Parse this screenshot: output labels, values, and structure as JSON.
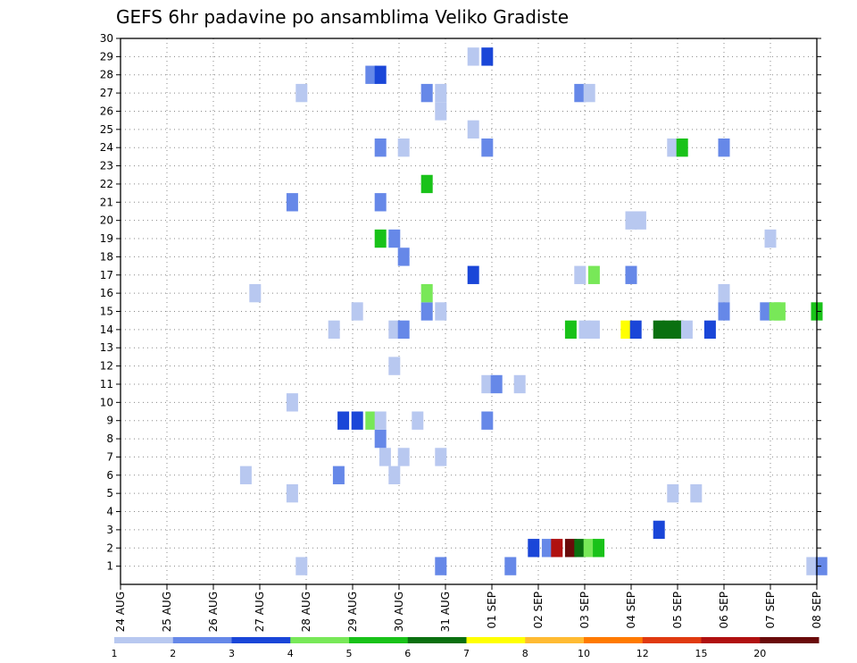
{
  "chart_data": {
    "type": "heatmap",
    "title": "GEFS 6hr padavine po ansamblima Veliko Gradiste",
    "xlabel": "",
    "ylabel": "",
    "x_ticks": [
      "24 AUG",
      "25 AUG",
      "26 AUG",
      "27 AUG",
      "28 AUG",
      "29 AUG",
      "30 AUG",
      "31 AUG",
      "01 SEP",
      "02 SEP",
      "03 SEP",
      "04 SEP",
      "05 SEP",
      "06 SEP",
      "07 SEP",
      "08 SEP"
    ],
    "x_range_days": [
      0,
      15
    ],
    "x_step": 0.25,
    "y_ticks": [
      1,
      2,
      3,
      4,
      5,
      6,
      7,
      8,
      9,
      10,
      11,
      12,
      13,
      14,
      15,
      16,
      17,
      18,
      19,
      20,
      21,
      22,
      23,
      24,
      25,
      26,
      27,
      28,
      29,
      30
    ],
    "y_range": [
      0,
      30
    ],
    "grid": true,
    "colorbar": {
      "labels": [
        "1",
        "2",
        "3",
        "4",
        "5",
        "6",
        "7",
        "8",
        "10",
        "12",
        "15",
        "20"
      ],
      "colors": [
        "#b8c8f0",
        "#6688e8",
        "#1a46d8",
        "#78e858",
        "#19c219",
        "#0a7010",
        "#ffff00",
        "#ffbb33",
        "#ff7a00",
        "#e03a10",
        "#b01010",
        "#6a0a0a"
      ]
    },
    "cells": [
      [
        3.9,
        1,
        0
      ],
      [
        6.9,
        1,
        1
      ],
      [
        8.4,
        1,
        1
      ],
      [
        14.9,
        1,
        0
      ],
      [
        15.1,
        1,
        1
      ],
      [
        8.9,
        2,
        2
      ],
      [
        9.2,
        2,
        1
      ],
      [
        9.4,
        2,
        10
      ],
      [
        9.7,
        2,
        11
      ],
      [
        9.9,
        2,
        5
      ],
      [
        10.1,
        2,
        3
      ],
      [
        10.3,
        2,
        4
      ],
      [
        11.6,
        3,
        2
      ],
      [
        3.7,
        5,
        0
      ],
      [
        11.9,
        5,
        0
      ],
      [
        12.4,
        5,
        0
      ],
      [
        2.7,
        6,
        0
      ],
      [
        4.7,
        6,
        1
      ],
      [
        5.9,
        6,
        0
      ],
      [
        5.7,
        7,
        0
      ],
      [
        6.1,
        7,
        0
      ],
      [
        6.9,
        7,
        0
      ],
      [
        5.6,
        8,
        1
      ],
      [
        4.8,
        9,
        2
      ],
      [
        5.1,
        9,
        2
      ],
      [
        5.4,
        9,
        3
      ],
      [
        5.6,
        9,
        0
      ],
      [
        6.4,
        9,
        0
      ],
      [
        7.9,
        9,
        1
      ],
      [
        3.7,
        10,
        0
      ],
      [
        7.9,
        11,
        0
      ],
      [
        8.1,
        11,
        1
      ],
      [
        8.6,
        11,
        0
      ],
      [
        5.9,
        12,
        0
      ],
      [
        4.6,
        14,
        0
      ],
      [
        5.9,
        14,
        0
      ],
      [
        6.1,
        14,
        1
      ],
      [
        9.7,
        14,
        4
      ],
      [
        10.0,
        14,
        0
      ],
      [
        10.2,
        14,
        0
      ],
      [
        10.9,
        14,
        6
      ],
      [
        11.1,
        14,
        2
      ],
      [
        11.6,
        14,
        5
      ],
      [
        11.8,
        14,
        5
      ],
      [
        12.0,
        14,
        5
      ],
      [
        12.2,
        14,
        0
      ],
      [
        12.7,
        14,
        2
      ],
      [
        5.1,
        15,
        0
      ],
      [
        6.6,
        15,
        1
      ],
      [
        6.9,
        15,
        0
      ],
      [
        13.9,
        15,
        1
      ],
      [
        14.1,
        15,
        3
      ],
      [
        14.2,
        15,
        3
      ],
      [
        15.0,
        15,
        4
      ],
      [
        2.9,
        16,
        0
      ],
      [
        6.6,
        16,
        3
      ],
      [
        13.0,
        16,
        0
      ],
      [
        13.0,
        15,
        1
      ],
      [
        7.6,
        17,
        2
      ],
      [
        9.9,
        17,
        0
      ],
      [
        10.2,
        17,
        3
      ],
      [
        11.0,
        17,
        1
      ],
      [
        6.1,
        18,
        1
      ],
      [
        5.6,
        19,
        4
      ],
      [
        5.9,
        19,
        1
      ],
      [
        14.0,
        19,
        0
      ],
      [
        11.0,
        20,
        0
      ],
      [
        11.2,
        20,
        0
      ],
      [
        3.7,
        21,
        1
      ],
      [
        5.6,
        21,
        1
      ],
      [
        6.6,
        22,
        4
      ],
      [
        5.6,
        24,
        1
      ],
      [
        6.1,
        24,
        0
      ],
      [
        7.9,
        24,
        1
      ],
      [
        11.9,
        24,
        0
      ],
      [
        12.1,
        24,
        4
      ],
      [
        13.0,
        24,
        1
      ],
      [
        7.6,
        25,
        0
      ],
      [
        6.9,
        26,
        0
      ],
      [
        3.9,
        27,
        0
      ],
      [
        6.6,
        27,
        1
      ],
      [
        6.9,
        27,
        0
      ],
      [
        9.9,
        27,
        1
      ],
      [
        10.1,
        27,
        0
      ],
      [
        5.4,
        28,
        1
      ],
      [
        5.6,
        28,
        2
      ],
      [
        7.6,
        29,
        0
      ],
      [
        7.9,
        29,
        2
      ]
    ]
  }
}
